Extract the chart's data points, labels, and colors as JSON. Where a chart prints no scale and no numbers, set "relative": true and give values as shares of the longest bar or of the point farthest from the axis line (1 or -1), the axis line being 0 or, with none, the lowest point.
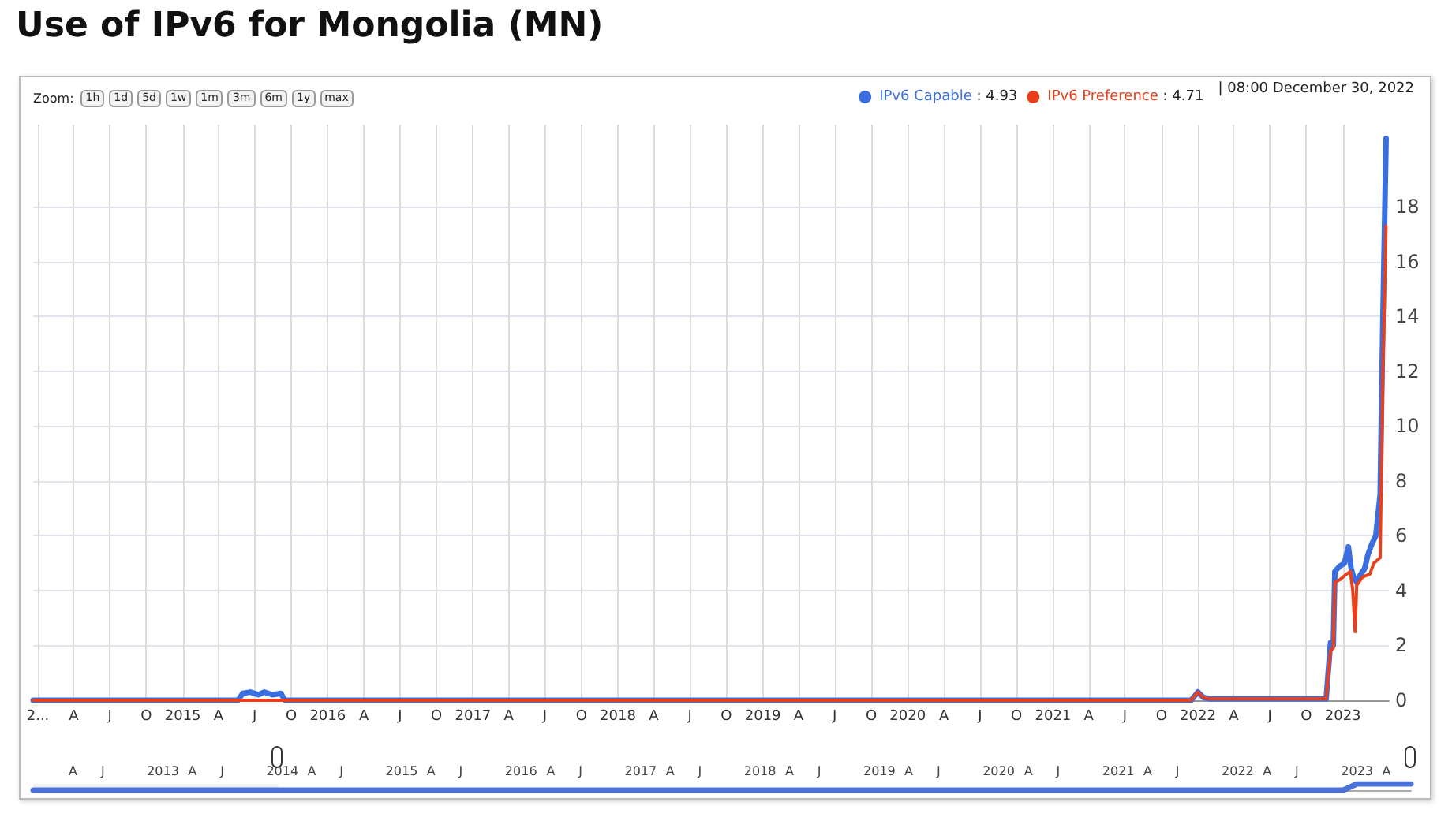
{
  "chart_data": [
    {
      "type": "line",
      "title": "Use of IPv6 for Mongolia (MN)",
      "legend": "top right",
      "grid": true,
      "marker": "none",
      "line_style": "solid",
      "xlim": [
        "2013-12-20",
        "2023-04-27"
      ],
      "ylim": [
        0,
        21
      ],
      "yticks": [
        0,
        2,
        4,
        6,
        8,
        10,
        12,
        14,
        16,
        18
      ],
      "xticks": [
        {
          "value": "2014-01-01",
          "label": "2..."
        },
        {
          "value": "2014-04-01",
          "label": "A"
        },
        {
          "value": "2014-07-01",
          "label": "J"
        },
        {
          "value": "2014-10-01",
          "label": "O"
        },
        {
          "value": "2015-01-01",
          "label": "2015"
        },
        {
          "value": "2015-04-01",
          "label": "A"
        },
        {
          "value": "2015-07-01",
          "label": "J"
        },
        {
          "value": "2015-10-01",
          "label": "O"
        },
        {
          "value": "2016-01-01",
          "label": "2016"
        },
        {
          "value": "2016-04-01",
          "label": "A"
        },
        {
          "value": "2016-07-01",
          "label": "J"
        },
        {
          "value": "2016-10-01",
          "label": "O"
        },
        {
          "value": "2017-01-01",
          "label": "2017"
        },
        {
          "value": "2017-04-01",
          "label": "A"
        },
        {
          "value": "2017-07-01",
          "label": "J"
        },
        {
          "value": "2017-10-01",
          "label": "O"
        },
        {
          "value": "2018-01-01",
          "label": "2018"
        },
        {
          "value": "2018-04-01",
          "label": "A"
        },
        {
          "value": "2018-07-01",
          "label": "J"
        },
        {
          "value": "2018-10-01",
          "label": "O"
        },
        {
          "value": "2019-01-01",
          "label": "2019"
        },
        {
          "value": "2019-04-01",
          "label": "A"
        },
        {
          "value": "2019-07-01",
          "label": "J"
        },
        {
          "value": "2019-10-01",
          "label": "O"
        },
        {
          "value": "2020-01-01",
          "label": "2020"
        },
        {
          "value": "2020-04-01",
          "label": "A"
        },
        {
          "value": "2020-07-01",
          "label": "J"
        },
        {
          "value": "2020-10-01",
          "label": "O"
        },
        {
          "value": "2021-01-01",
          "label": "2021"
        },
        {
          "value": "2021-04-01",
          "label": "A"
        },
        {
          "value": "2021-07-01",
          "label": "J"
        },
        {
          "value": "2021-10-01",
          "label": "O"
        },
        {
          "value": "2022-01-01",
          "label": "2022"
        },
        {
          "value": "2022-04-01",
          "label": "A"
        },
        {
          "value": "2022-07-01",
          "label": "J"
        },
        {
          "value": "2022-10-01",
          "label": "O"
        },
        {
          "value": "2023-01-01",
          "label": "2023"
        }
      ],
      "annotations": [
        "Zoom:",
        "1h",
        "1d",
        "5d",
        "1w",
        "1m",
        "3m",
        "6m",
        "1y",
        "max",
        ": 4.93",
        ": 4.71",
        "| 08:00 December 30, 2022"
      ],
      "series": [
        {
          "name": "IPv6 Capable",
          "color": "#3b6fe0",
          "x": [
            "2013-12-20",
            "2015-05-20",
            "2015-06-01",
            "2015-06-20",
            "2015-07-10",
            "2015-07-25",
            "2015-08-15",
            "2015-09-05",
            "2015-09-15",
            "2021-12-15",
            "2022-01-01",
            "2022-01-15",
            "2022-02-01",
            "2022-11-20",
            "2022-12-01",
            "2022-12-08",
            "2022-12-12",
            "2022-12-25",
            "2023-01-05",
            "2023-01-15",
            "2023-01-22",
            "2023-01-28",
            "2023-02-05",
            "2023-02-15",
            "2023-02-25",
            "2023-03-05",
            "2023-03-15",
            "2023-03-25",
            "2023-04-05",
            "2023-04-12",
            "2023-04-20"
          ],
          "values": [
            0,
            0,
            0.25,
            0.3,
            0.2,
            0.3,
            0.2,
            0.25,
            0,
            0,
            0.3,
            0.1,
            0.05,
            0.05,
            2.1,
            2,
            4.7,
            4.9,
            5,
            5.6,
            4.8,
            4.5,
            4.3,
            4.6,
            4.8,
            5.3,
            5.7,
            6,
            7.5,
            14,
            20.5
          ]
        },
        {
          "name": "IPv6 Preference",
          "color": "#e8401c",
          "x": [
            "2013-12-20",
            "2021-12-15",
            "2022-01-01",
            "2022-01-15",
            "2022-02-01",
            "2022-11-20",
            "2022-12-01",
            "2022-12-08",
            "2022-12-12",
            "2022-12-25",
            "2023-01-10",
            "2023-01-20",
            "2023-01-26",
            "2023-02-01",
            "2023-02-05",
            "2023-02-20",
            "2023-03-10",
            "2023-03-20",
            "2023-04-05",
            "2023-04-12",
            "2023-04-20"
          ],
          "values": [
            0,
            0,
            0.3,
            0.1,
            0.05,
            0.05,
            1.8,
            1.9,
            4.3,
            4.4,
            4.6,
            4.7,
            4,
            2.5,
            4.2,
            4.5,
            4.6,
            5,
            5.2,
            12,
            17.3
          ]
        }
      ]
    },
    {
      "type": "line",
      "relative": true,
      "tick_labels": "x",
      "marker": "none",
      "xlim": [
        "2011-12-01",
        "2023-06-15"
      ],
      "xticks": [
        {
          "value": "2012-04-01",
          "label": "A"
        },
        {
          "value": "2012-07-01",
          "label": "J"
        },
        {
          "value": "2013-01-01",
          "label": "2013"
        },
        {
          "value": "2013-04-01",
          "label": "A"
        },
        {
          "value": "2013-07-01",
          "label": "J"
        },
        {
          "value": "2014-01-01",
          "label": "2014"
        },
        {
          "value": "2014-04-01",
          "label": "A"
        },
        {
          "value": "2014-07-01",
          "label": "J"
        },
        {
          "value": "2015-01-01",
          "label": "2015"
        },
        {
          "value": "2015-04-01",
          "label": "A"
        },
        {
          "value": "2015-07-01",
          "label": "J"
        },
        {
          "value": "2016-01-01",
          "label": "2016"
        },
        {
          "value": "2016-04-01",
          "label": "A"
        },
        {
          "value": "2016-07-01",
          "label": "J"
        },
        {
          "value": "2017-01-01",
          "label": "2017"
        },
        {
          "value": "2017-04-01",
          "label": "A"
        },
        {
          "value": "2017-07-01",
          "label": "J"
        },
        {
          "value": "2018-01-01",
          "label": "2018"
        },
        {
          "value": "2018-04-01",
          "label": "A"
        },
        {
          "value": "2018-07-01",
          "label": "J"
        },
        {
          "value": "2019-01-01",
          "label": "2019"
        },
        {
          "value": "2019-04-01",
          "label": "A"
        },
        {
          "value": "2019-07-01",
          "label": "J"
        },
        {
          "value": "2020-01-01",
          "label": "2020"
        },
        {
          "value": "2020-04-01",
          "label": "A"
        },
        {
          "value": "2020-07-01",
          "label": "J"
        },
        {
          "value": "2021-01-01",
          "label": "2021"
        },
        {
          "value": "2021-04-01",
          "label": "A"
        },
        {
          "value": "2021-07-01",
          "label": "J"
        },
        {
          "value": "2022-01-01",
          "label": "2022"
        },
        {
          "value": "2022-04-01",
          "label": "A"
        },
        {
          "value": "2022-07-01",
          "label": "J"
        },
        {
          "value": "2023-01-01",
          "label": "2023"
        },
        {
          "value": "2023-04-01",
          "label": "A"
        }
      ],
      "bands": [
        {
          "axis": "x",
          "from": "2011-12-01",
          "to": "2013-12-20",
          "color": "#ececec"
        }
      ],
      "series": [
        {
          "color": "#4a72d8",
          "x": [
            "2011-12-01",
            "2022-11-20",
            "2023-01-01",
            "2023-06-15"
          ],
          "values": [
            0,
            0,
            1,
            1
          ]
        }
      ]
    }
  ]
}
